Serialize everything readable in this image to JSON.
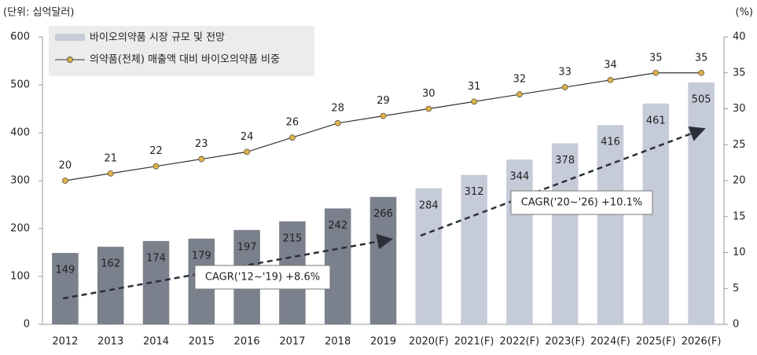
{
  "chart_data": {
    "type": "bar",
    "y_label": "(단위: 십억달러)",
    "y2_label": "(%)",
    "categories": [
      "2012",
      "2013",
      "2014",
      "2015",
      "2016",
      "2017",
      "2018",
      "2019",
      "2020(F)",
      "2021(F)",
      "2022(F)",
      "2023(F)",
      "2024(F)",
      "2025(F)",
      "2026(F)"
    ],
    "series": [
      {
        "name": "바이오의약품 시장 규모 및 전망",
        "type": "bar",
        "color": "#c6cbd9",
        "colors": [
          "#7b808d",
          "#7b808d",
          "#7b808d",
          "#7b808d",
          "#7b808d",
          "#7b808d",
          "#7b808d",
          "#7b808d",
          "#c6cbd9",
          "#c6cbd9",
          "#c6cbd9",
          "#c6cbd9",
          "#c6cbd9",
          "#c6cbd9",
          "#c6cbd9"
        ],
        "values": [
          149,
          162,
          174,
          179,
          197,
          215,
          242,
          266,
          284,
          312,
          344,
          378,
          416,
          461,
          505
        ]
      },
      {
        "name": "의약품(전체) 매출액 대비 바이오의약품 비중",
        "type": "line",
        "axis": "y2",
        "color": "#333333",
        "marker_color": "#e3b23c",
        "values": [
          20,
          21,
          22,
          23,
          24,
          26,
          28,
          29,
          30,
          31,
          32,
          33,
          34,
          35,
          35
        ]
      }
    ],
    "ylim": [
      0,
      600
    ],
    "yticks": [
      0,
      100,
      200,
      300,
      400,
      500,
      600
    ],
    "y2lim": [
      0,
      40
    ],
    "y2ticks": [
      0,
      5,
      10,
      15,
      20,
      25,
      30,
      35,
      40
    ],
    "annotations": [
      "CAGR('12~'19)  +8.6%",
      "CAGR('20~'26)  +10.1%"
    ],
    "legend": "upper left"
  }
}
